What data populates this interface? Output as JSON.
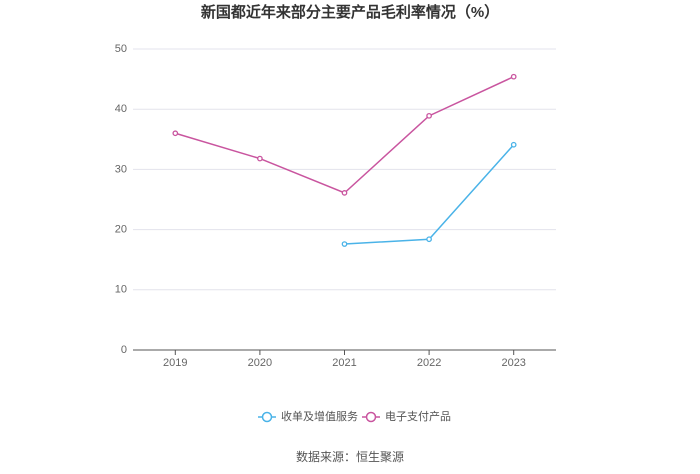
{
  "chart_data": {
    "type": "line",
    "title": "新国都近年来部分主要产品毛利率情况（%）",
    "categories": [
      "2019",
      "2020",
      "2021",
      "2022",
      "2023"
    ],
    "series": [
      {
        "name": "收单及增值服务",
        "color": "#4ab3e8",
        "values": [
          null,
          null,
          17.6,
          18.4,
          34.1
        ]
      },
      {
        "name": "电子支付产品",
        "color": "#c9559f",
        "values": [
          36.0,
          31.8,
          26.1,
          38.9,
          45.4
        ]
      }
    ],
    "ylim": [
      0,
      50
    ],
    "yticks": [
      0,
      10,
      20,
      30,
      40,
      50
    ],
    "grid": true,
    "legend": "bottom",
    "source": "数据来源：恒生聚源"
  }
}
